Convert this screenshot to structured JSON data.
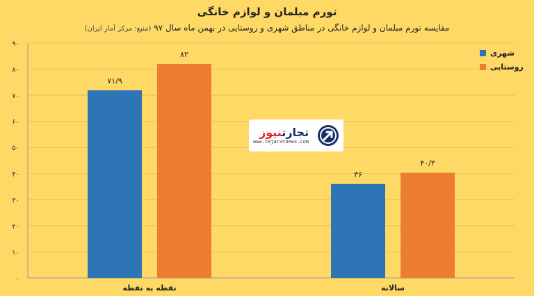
{
  "chart_data": {
    "type": "bar",
    "title": "تورم مبلمان و لوازم خانگی",
    "subtitle": "مقایسه تورم مبلمان و لوازم خانگی در مناطق شهری و روستایی در بهمن ماه سال ۹۷",
    "source": "(منبع: مرکز آمار ایران)",
    "categories": [
      "نقطه به نقطه",
      "سالانه"
    ],
    "series": [
      {
        "name": "شهری",
        "values": [
          71.9,
          36
        ],
        "labels": [
          "۷۱/۹",
          "۳۶"
        ],
        "color": "#2e75b6"
      },
      {
        "name": "روستایی",
        "values": [
          82,
          40.3
        ],
        "labels": [
          "۸۲",
          "۴۰/۳"
        ],
        "color": "#ed7d31"
      }
    ],
    "ylim": [
      0,
      90
    ],
    "yticks": [
      0,
      10,
      20,
      30,
      40,
      50,
      60,
      70,
      80,
      90
    ],
    "ytick_labels": [
      "۰",
      "۱۰",
      "۲۰",
      "۳۰",
      "۴۰",
      "۵۰",
      "۶۰",
      "۷۰",
      "۸۰",
      "۹۰"
    ],
    "grid": true,
    "legend_position": "top-right"
  },
  "watermark": {
    "name_part1": "تجارت",
    "name_part2": "نیوز",
    "url": "www.tejaratnews.com",
    "icon": "arrow-logo-icon"
  }
}
